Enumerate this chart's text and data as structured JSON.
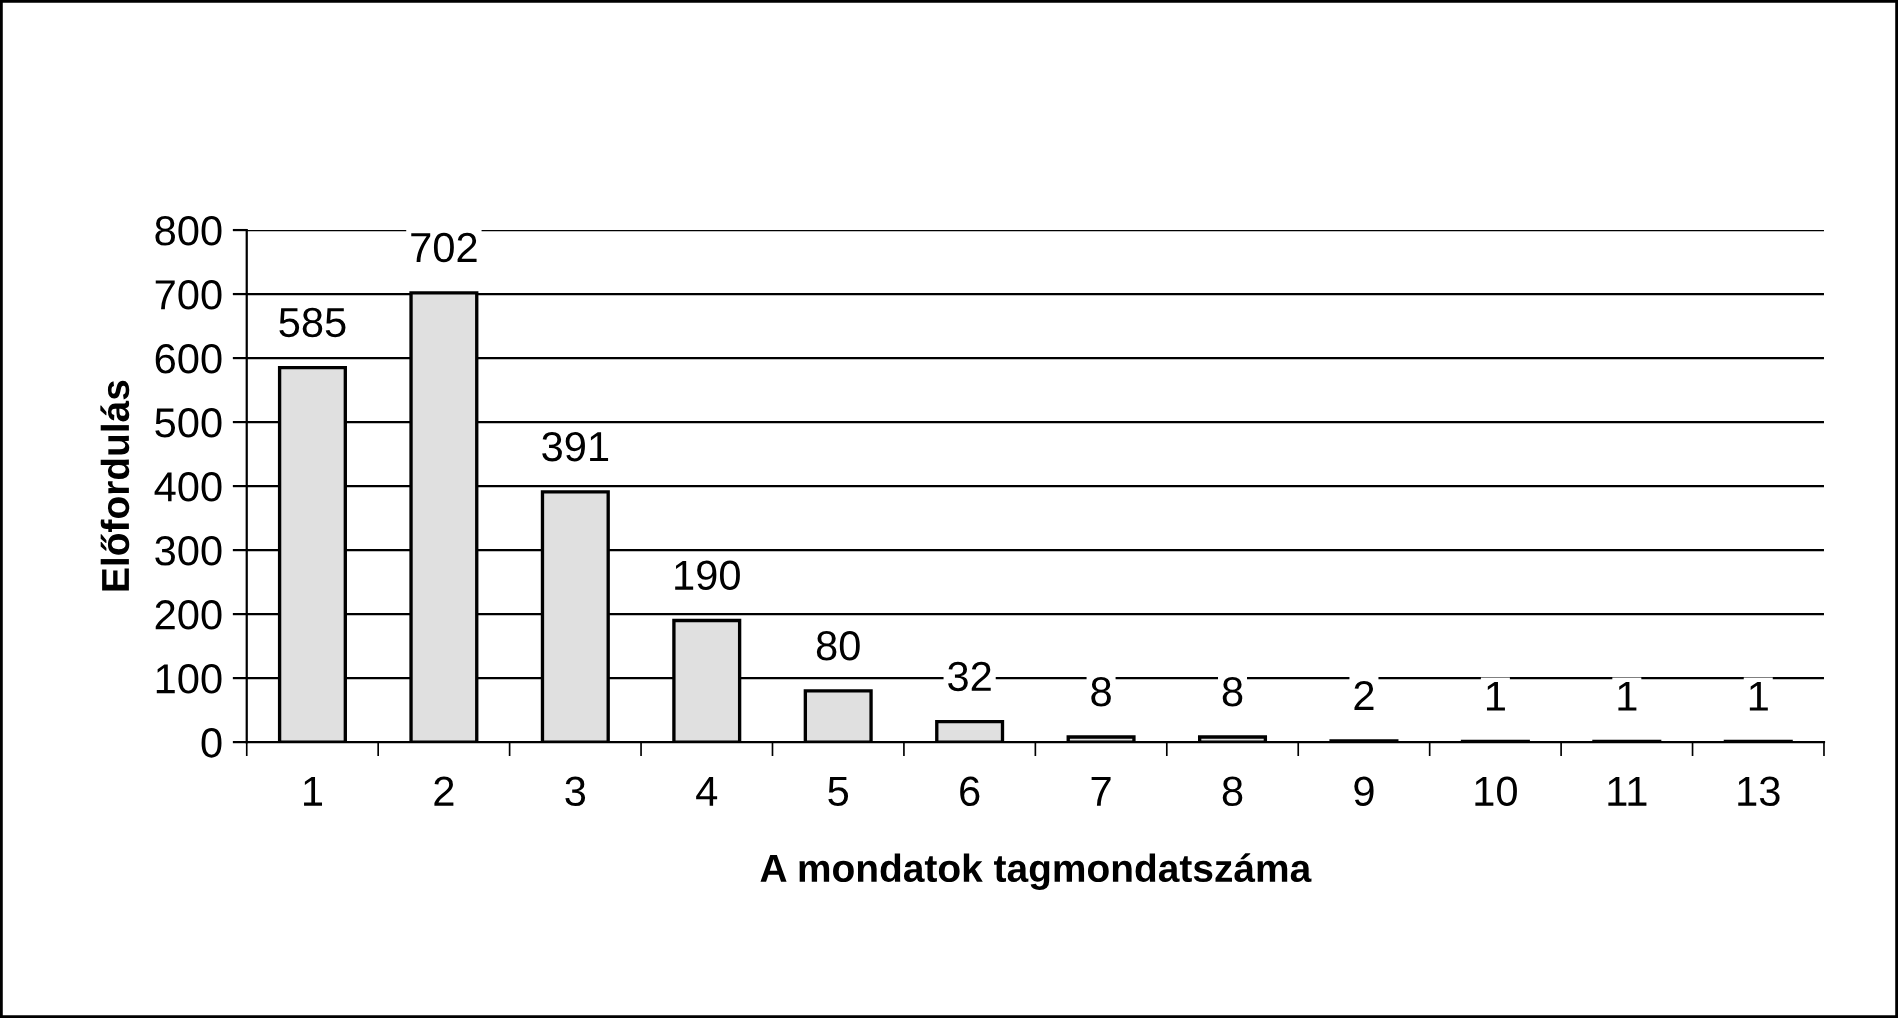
{
  "chart_data": {
    "type": "bar",
    "xlabel": "A mondatok tagmondatszáma",
    "ylabel": "Előfordulás",
    "categories": [
      "1",
      "2",
      "3",
      "4",
      "5",
      "6",
      "7",
      "8",
      "9",
      "10",
      "11",
      "13"
    ],
    "values": [
      585,
      702,
      391,
      190,
      80,
      32,
      8,
      8,
      2,
      1,
      1,
      1
    ],
    "color": "#e0e0e0",
    "ylim": [
      0,
      800
    ],
    "yticks": [
      0,
      100,
      200,
      300,
      400,
      500,
      600,
      700,
      800
    ],
    "grid": "y",
    "data_labels": true
  }
}
